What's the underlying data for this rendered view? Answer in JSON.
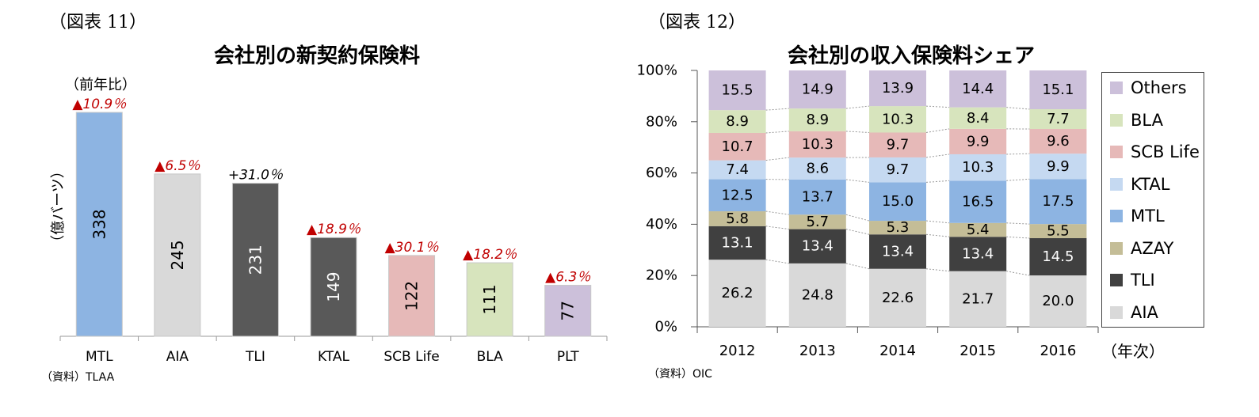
{
  "chart_data": [
    {
      "type": "bar",
      "figure_label": "（図表 11）",
      "title": "会社別の新契約保険料",
      "ylabel": "（億バーツ）",
      "change_label": "（前年比）",
      "source": "（資料）TLAA",
      "categories": [
        "MTL",
        "AIA",
        "TLI",
        "KTAL",
        "SCB Life",
        "BLA",
        "PLT"
      ],
      "values": [
        338,
        245,
        231,
        149,
        122,
        111,
        77
      ],
      "colors": [
        "#8db4e2",
        "#d9d9d9",
        "#595959",
        "#595959",
        "#e6b9b8",
        "#d7e4bd",
        "#ccc0da"
      ],
      "changes": [
        {
          "text": "▲10.9％",
          "negative": true
        },
        {
          "text": "▲6.5％",
          "negative": true
        },
        {
          "text": "+31.0％",
          "negative": false
        },
        {
          "text": "▲18.9％",
          "negative": true
        },
        {
          "text": "▲30.1％",
          "negative": true
        },
        {
          "text": "▲18.2％",
          "negative": true
        },
        {
          "text": "▲6.3％",
          "negative": true
        }
      ],
      "ylim": [
        0,
        338
      ]
    },
    {
      "type": "bar",
      "stacked": true,
      "figure_label": "（図表 12）",
      "title": "会社別の収入保険料シェア",
      "xlabel": "（年次）",
      "source": "（資料）OIC",
      "categories": [
        "2012",
        "2013",
        "2014",
        "2015",
        "2016"
      ],
      "yticks": [
        "0%",
        "20%",
        "40%",
        "60%",
        "80%",
        "100%"
      ],
      "ylim": [
        0,
        100
      ],
      "legend_position": "right",
      "series": [
        {
          "name": "AIA",
          "color": "#d9d9d9",
          "values": [
            26.2,
            24.8,
            22.6,
            21.7,
            20.0
          ],
          "label_color": "#000000"
        },
        {
          "name": "TLI",
          "color": "#404040",
          "values": [
            13.1,
            13.4,
            13.4,
            13.4,
            14.5
          ],
          "label_color": "#ffffff"
        },
        {
          "name": "AZAY",
          "color": "#c4bd97",
          "values": [
            5.8,
            5.7,
            5.3,
            5.4,
            5.5
          ],
          "label_color": "#000000"
        },
        {
          "name": "MTL",
          "color": "#8db4e2",
          "values": [
            12.5,
            13.7,
            15.0,
            16.5,
            17.5
          ],
          "label_color": "#000000"
        },
        {
          "name": "KTAL",
          "color": "#c5d9f1",
          "values": [
            7.4,
            8.6,
            9.7,
            10.3,
            9.9
          ],
          "label_color": "#000000"
        },
        {
          "name": "SCB Life",
          "color": "#e6b9b8",
          "values": [
            10.7,
            10.3,
            9.7,
            9.9,
            9.6
          ],
          "label_color": "#000000"
        },
        {
          "name": "BLA",
          "color": "#d7e4bd",
          "values": [
            8.9,
            8.9,
            10.3,
            8.4,
            7.7
          ],
          "label_color": "#000000"
        },
        {
          "name": "Others",
          "color": "#ccc0da",
          "values": [
            15.5,
            14.9,
            13.9,
            14.4,
            15.1
          ],
          "label_color": "#000000"
        }
      ]
    }
  ]
}
